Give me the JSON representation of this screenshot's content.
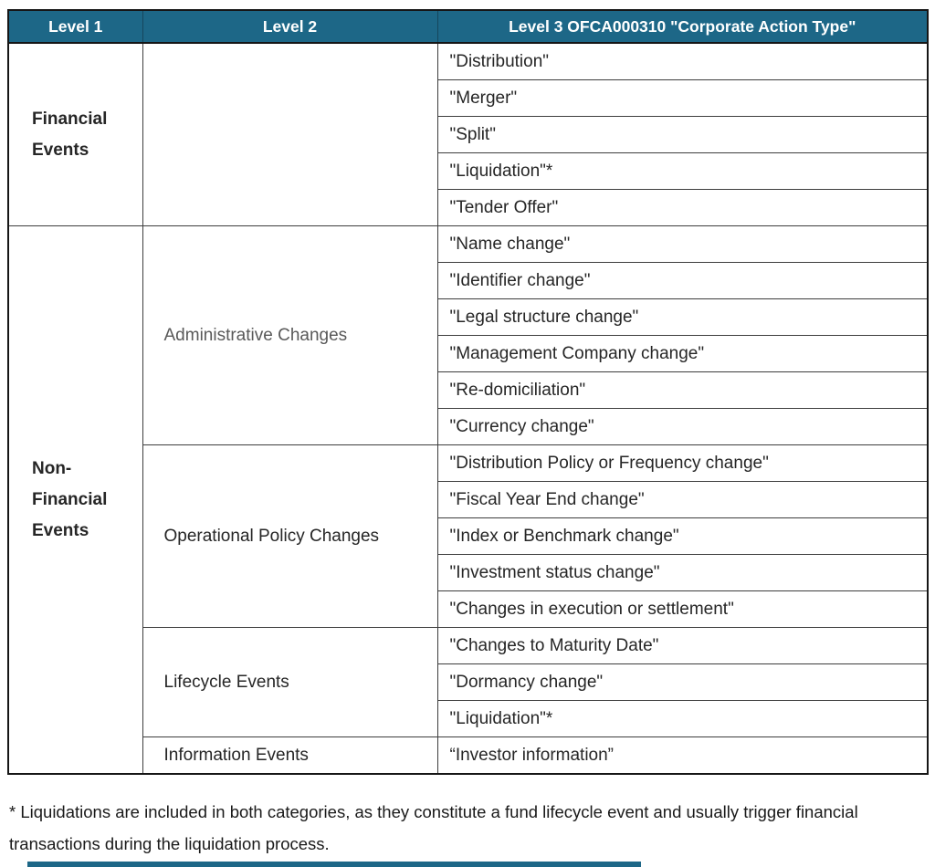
{
  "colors": {
    "header_bg": "#1d6787",
    "header_text": "#ffffff",
    "outer_border": "#161616",
    "inner_border": "#3d3d3d",
    "body_text": "#262626",
    "muted_level2_text": "#595959"
  },
  "table": {
    "header": [
      "Level 1",
      "Level 2",
      "Level 3 OFCA000310 \"Corporate Action Type\""
    ],
    "financial": {
      "level1": "Financial\nEvents",
      "level2": "",
      "items": [
        "\"Distribution\"",
        "\"Merger\"",
        "\"Split\"",
        "\"Liquidation\"*",
        "\"Tender Offer\""
      ]
    },
    "non_financial": {
      "level1": "Non-\nFinancial\nEvents",
      "groups": [
        {
          "level2": "Administrative Changes",
          "items": [
            "\"Name change\"",
            "\"Identifier change\"",
            "\"Legal structure change\"",
            "\"Management Company change\"",
            "\"Re-domiciliation\"",
            "\"Currency change\""
          ]
        },
        {
          "level2": "Operational Policy Changes",
          "items": [
            "\"Distribution Policy or Frequency change\"",
            "\"Fiscal Year End change\"",
            "\"Index or Benchmark change\"",
            "\"Investment status change\"",
            "\"Changes in execution or settlement\""
          ]
        },
        {
          "level2": "Lifecycle Events",
          "items": [
            "\"Changes to Maturity Date\"",
            "\"Dormancy change\"",
            "\"Liquidation\"*"
          ]
        },
        {
          "level2": "Information Events",
          "items": [
            "“Investor information”"
          ]
        }
      ]
    }
  },
  "footnote": "* Liquidations are included in both categories, as they constitute a fund lifecycle event and usually trigger financial transactions during the liquidation process."
}
